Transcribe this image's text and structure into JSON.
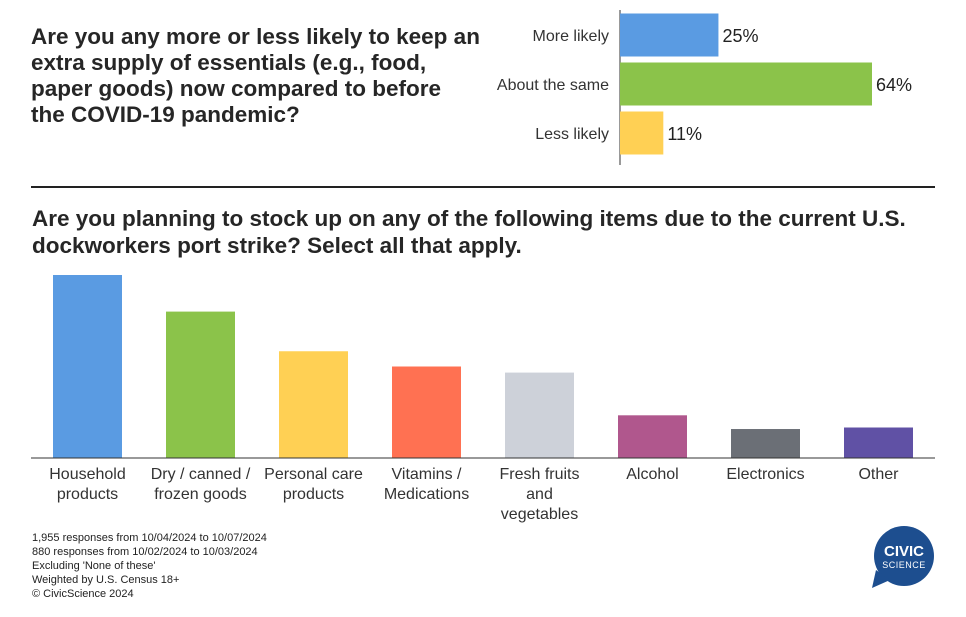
{
  "chart_data": [
    {
      "type": "bar",
      "orientation": "horizontal",
      "title": "Are you any more or less likely to keep an extra supply of essentials (e.g., food, paper goods) now compared to before the COVID-19 pandemic?",
      "categories": [
        "More likely",
        "About the same",
        "Less likely"
      ],
      "values": [
        25,
        64,
        11
      ],
      "value_labels": [
        "25%",
        "64%",
        "11%"
      ],
      "colors": [
        "#5a9be2",
        "#8bc34a",
        "#ffd054"
      ],
      "xlim": [
        0,
        64
      ]
    },
    {
      "type": "bar",
      "orientation": "vertical",
      "title": "Are you planning to stock up on any of the following items due to the current U.S. dockworkers port strike? Select all that apply.",
      "categories": [
        [
          "Household",
          "products"
        ],
        [
          "Dry / canned /",
          "frozen goods"
        ],
        [
          "Personal care",
          "products"
        ],
        [
          "Vitamins /",
          "Medications"
        ],
        [
          "Fresh fruits",
          "and",
          "vegetables"
        ],
        [
          "Alcohol"
        ],
        [
          "Electronics"
        ],
        [
          "Other"
        ]
      ],
      "values": [
        60,
        48,
        35,
        30,
        28,
        14,
        9.5,
        10
      ],
      "colors": [
        "#5a9be2",
        "#8bc34a",
        "#ffd054",
        "#ff7152",
        "#cdd1d9",
        "#b0578d",
        "#6b6f76",
        "#6051a5"
      ],
      "ylim": [
        0,
        60
      ],
      "grid": false
    }
  ],
  "footnotes": [
    "1,955 responses from 10/04/2024 to 10/07/2024",
    "880 responses from 10/02/2024 to 10/03/2024",
    "Excluding 'None of these'",
    "Weighted by U.S. Census 18+",
    "© CivicScience 2024"
  ],
  "logo": {
    "line1": "CIVIC",
    "line2": "SCIENCE",
    "color": "#1d4e8f"
  }
}
